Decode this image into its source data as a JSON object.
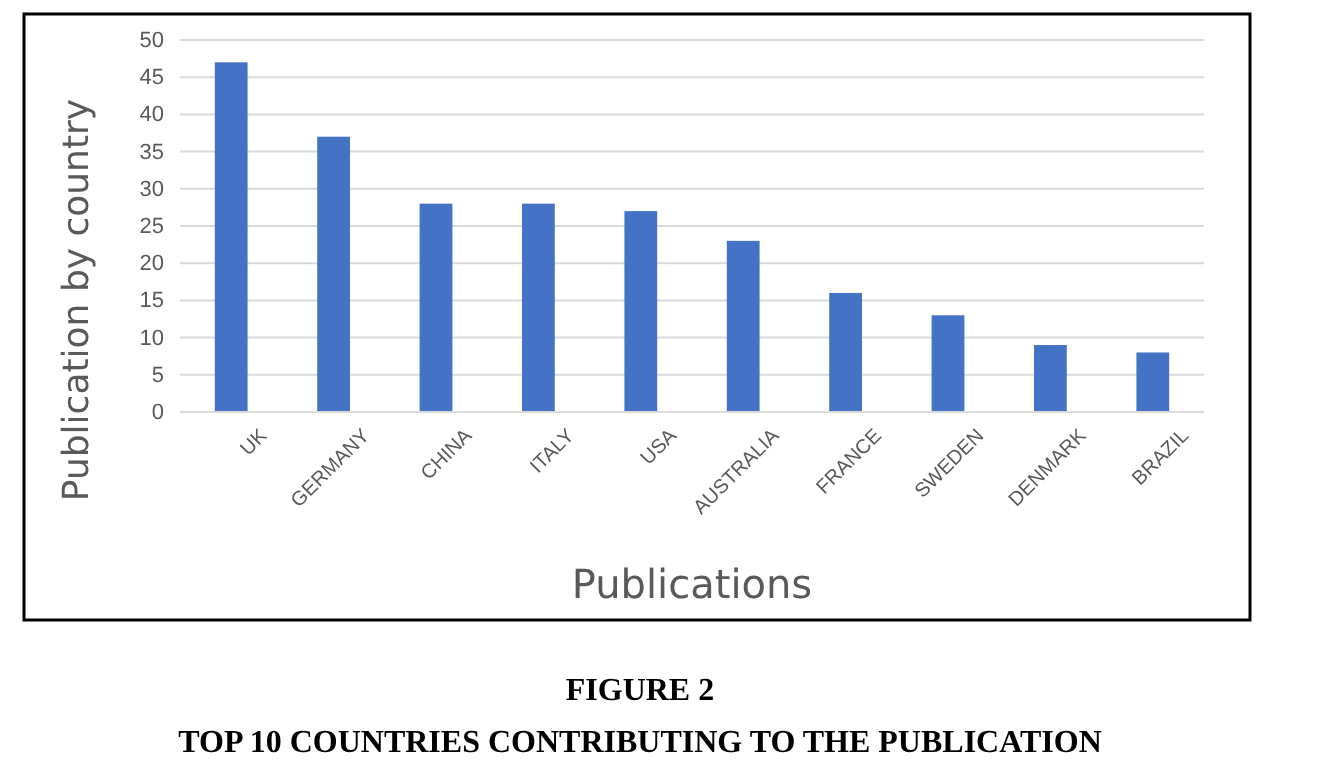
{
  "chart_data": {
    "type": "bar",
    "title": "FIGURE 2",
    "subtitle": "TOP 10 COUNTRIES CONTRIBUTING TO THE PUBLICATION",
    "xlabel": "Publications",
    "ylabel": "Publication by country",
    "categories": [
      "UK",
      "GERMANY",
      "CHINA",
      "ITALY",
      "USA",
      "AUSTRALIA",
      "FRANCE",
      "SWEDEN",
      "DENMARK",
      "BRAZIL"
    ],
    "values": [
      47,
      37,
      28,
      28,
      27,
      23,
      16,
      13,
      9,
      8
    ],
    "color": "#4472c4",
    "ylim": [
      0,
      50
    ],
    "yticks": [
      0,
      5,
      10,
      15,
      20,
      25,
      30,
      35,
      40,
      45,
      50
    ],
    "grid": "y"
  }
}
